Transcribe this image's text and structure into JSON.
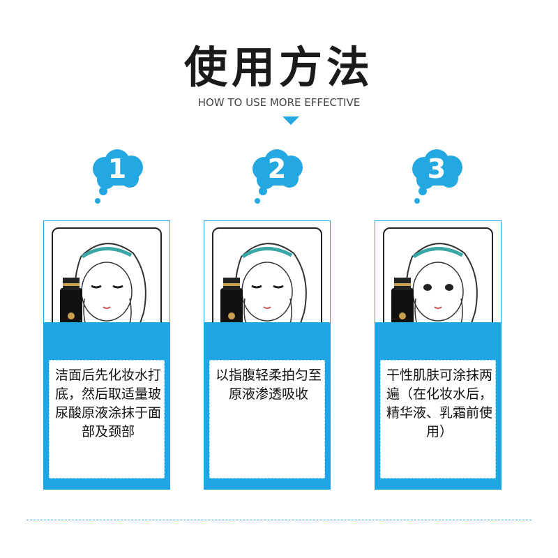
{
  "header": {
    "title": "使用方法",
    "subtitle": "HOW TO USE MORE EFFECTIVE"
  },
  "colors": {
    "accent": "#1ea6e4",
    "text": "#111111"
  },
  "steps": [
    {
      "number": "1",
      "text": "洁面后先化妆水打底，然后取适量玻尿酸原液涂抹于面部及颈部"
    },
    {
      "number": "2",
      "text": "以指腹轻柔拍匀至原液渗透吸收"
    },
    {
      "number": "3",
      "text": "干性肌肤可涂抹两遍（在化妆水后，精华液、乳霜前使用）"
    }
  ]
}
